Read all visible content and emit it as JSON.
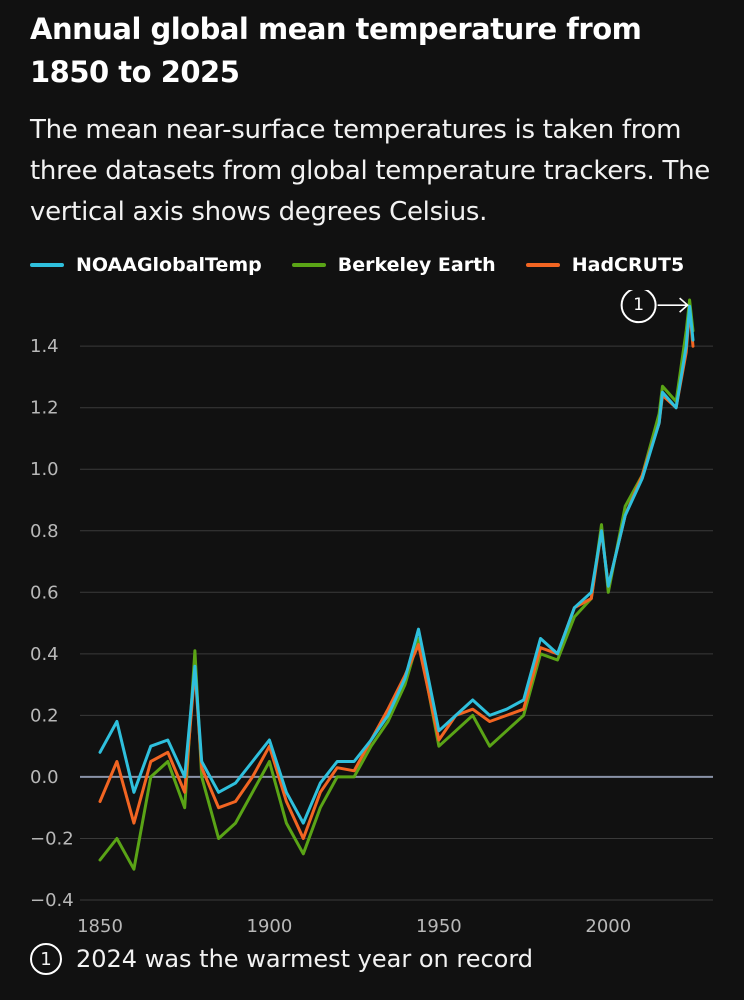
{
  "title": "Annual global mean temperature from 1850 to 2025",
  "subtitle": "The mean near-surface temperatures is taken from three datasets from global temperature trackers. The vertical axis shows degrees Celsius.",
  "legend": [
    {
      "name": "NOAAGlobalTemp",
      "color": "#2fc0dd"
    },
    {
      "name": "Berkeley Earth",
      "color": "#5aa416"
    },
    {
      "name": "HadCRUT5",
      "color": "#f26522"
    }
  ],
  "annotation": {
    "marker": "1",
    "text": "2024 was the warmest year on record"
  },
  "chart_data": {
    "type": "line",
    "xlim": [
      1850,
      2025
    ],
    "ylim": [
      -0.4,
      1.55
    ],
    "x_ticks": [
      1850,
      1900,
      1950,
      2000
    ],
    "y_ticks": [
      -0.4,
      -0.2,
      0.0,
      0.2,
      0.4,
      0.6,
      0.8,
      1.0,
      1.2,
      1.4
    ],
    "y_tick_labels": [
      "−0.4",
      "−0.2",
      "0.0",
      "0.2",
      "0.4",
      "0.6",
      "0.8",
      "1.0",
      "1.2",
      "1.4"
    ],
    "grid": true,
    "zero_line": true,
    "legend_position": "top-left",
    "x": [
      1850,
      1855,
      1860,
      1865,
      1870,
      1875,
      1878,
      1880,
      1885,
      1890,
      1895,
      1900,
      1905,
      1910,
      1915,
      1920,
      1925,
      1930,
      1935,
      1940,
      1944,
      1950,
      1955,
      1960,
      1965,
      1970,
      1975,
      1980,
      1985,
      1990,
      1995,
      1998,
      2000,
      2005,
      2010,
      2015,
      2016,
      2020,
      2023,
      2024,
      2025
    ],
    "series": [
      {
        "name": "NOAAGlobalTemp",
        "color": "#2fc0dd",
        "values": [
          0.08,
          0.18,
          -0.05,
          0.1,
          0.12,
          0.0,
          0.36,
          0.05,
          -0.05,
          -0.02,
          0.05,
          0.12,
          -0.05,
          -0.15,
          -0.02,
          0.05,
          0.05,
          0.12,
          0.2,
          0.32,
          0.48,
          0.15,
          0.2,
          0.25,
          0.2,
          0.22,
          0.25,
          0.45,
          0.4,
          0.55,
          0.6,
          0.8,
          0.62,
          0.85,
          0.97,
          1.15,
          1.25,
          1.2,
          1.4,
          1.53,
          1.42
        ]
      },
      {
        "name": "Berkeley Earth",
        "color": "#5aa416",
        "values": [
          -0.27,
          -0.2,
          -0.3,
          0.0,
          0.05,
          -0.1,
          0.41,
          0.0,
          -0.2,
          -0.15,
          -0.05,
          0.05,
          -0.15,
          -0.25,
          -0.1,
          0.0,
          0.0,
          0.1,
          0.18,
          0.3,
          0.45,
          0.1,
          0.15,
          0.2,
          0.1,
          0.15,
          0.2,
          0.4,
          0.38,
          0.52,
          0.58,
          0.82,
          0.6,
          0.88,
          0.98,
          1.18,
          1.27,
          1.22,
          1.45,
          1.55,
          1.45
        ]
      },
      {
        "name": "HadCRUT5",
        "color": "#f26522",
        "values": [
          -0.08,
          0.05,
          -0.15,
          0.05,
          0.08,
          -0.05,
          0.35,
          0.03,
          -0.1,
          -0.08,
          0.0,
          0.1,
          -0.08,
          -0.2,
          -0.05,
          0.03,
          0.02,
          0.12,
          0.22,
          0.33,
          0.43,
          0.12,
          0.2,
          0.22,
          0.18,
          0.2,
          0.22,
          0.42,
          0.4,
          0.55,
          0.58,
          0.8,
          0.62,
          0.85,
          0.98,
          1.15,
          1.24,
          1.2,
          1.38,
          1.52,
          1.4
        ]
      }
    ]
  }
}
